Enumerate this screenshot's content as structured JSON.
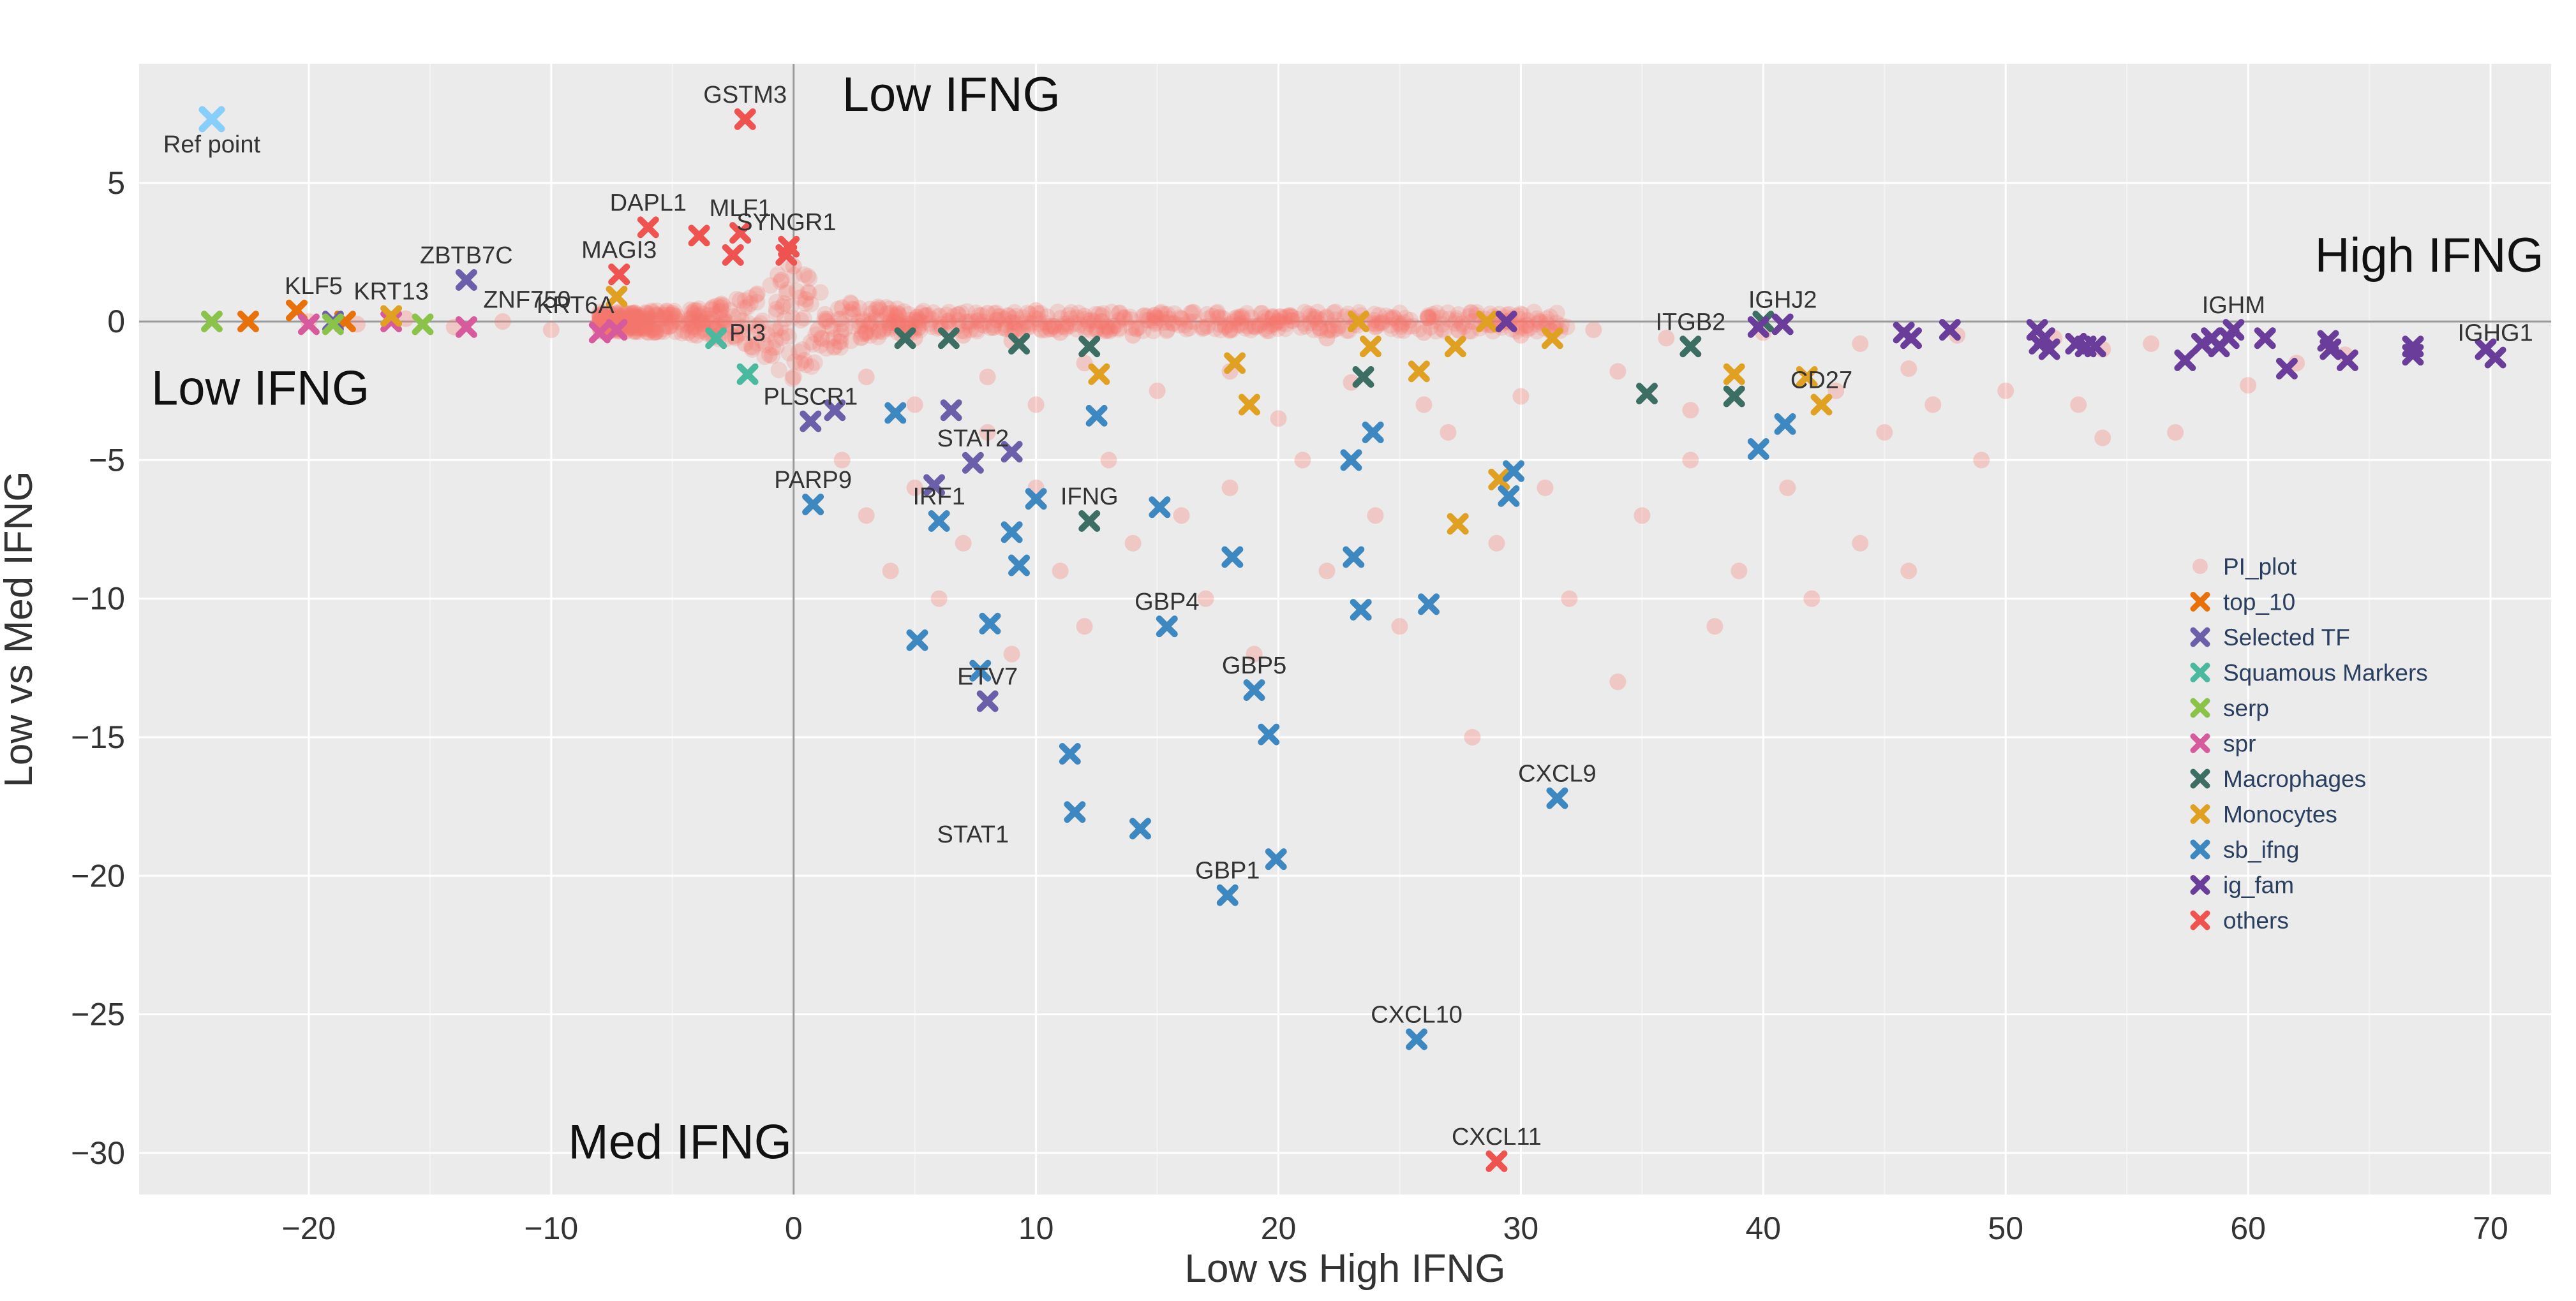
{
  "chart_data": {
    "type": "scatter",
    "title": "",
    "xlabel": "Low vs High IFNG",
    "ylabel": "Low vs Med IFNG",
    "xlim": [
      -27,
      72.5
    ],
    "ylim": [
      -31.5,
      9.3
    ],
    "x_ticks": [
      -20,
      -10,
      0,
      10,
      20,
      30,
      40,
      50,
      60,
      70
    ],
    "y_ticks": [
      5,
      0,
      -5,
      -10,
      -15,
      -20,
      -25,
      -30
    ],
    "grid": true,
    "background": "#ebebeb",
    "legend_position": "right",
    "quadrant_labels": [
      {
        "text": "Low IFNG",
        "x": 2,
        "y": 7.6
      },
      {
        "text": "High IFNG",
        "x": 72.2,
        "y": 1.8
      },
      {
        "text": "Low IFNG",
        "x": -26.5,
        "y": -3
      },
      {
        "text": "Med IFNG",
        "x": -9.3,
        "y": -30.2
      }
    ],
    "ref_point": {
      "label": "Ref point",
      "x": -24,
      "y": 7.3,
      "color": "#87cefa"
    },
    "series": [
      {
        "name": "PI_plot",
        "color": "#f8766d",
        "marker": "circle",
        "points": [
          [
            -20,
            0
          ],
          [
            -18,
            -0.1
          ],
          [
            -16,
            0.1
          ],
          [
            -14,
            -0.2
          ],
          [
            -12,
            0
          ],
          [
            -10,
            -0.3
          ],
          [
            -8,
            0.2
          ],
          [
            -6,
            -0.4
          ],
          [
            -5,
            0.3
          ],
          [
            -4,
            -0.5
          ],
          [
            -3,
            0.5
          ],
          [
            -2,
            -0.8
          ],
          [
            -1.5,
            1
          ],
          [
            -1,
            -1.2
          ],
          [
            -0.5,
            1.5
          ],
          [
            0,
            -2
          ],
          [
            0,
            2
          ],
          [
            0.3,
            -1.5
          ],
          [
            0.5,
            0.8
          ],
          [
            1,
            -0.3
          ],
          [
            2,
            0.5
          ],
          [
            3,
            -0.4
          ],
          [
            4,
            0.3
          ],
          [
            5,
            -0.6
          ],
          [
            6,
            0.2
          ],
          [
            7,
            -0.5
          ],
          [
            8,
            0.3
          ],
          [
            9,
            -0.7
          ],
          [
            10,
            0.4
          ],
          [
            11,
            -0.4
          ],
          [
            12,
            0.2
          ],
          [
            14,
            -0.5
          ],
          [
            16,
            0.1
          ],
          [
            18,
            -0.3
          ],
          [
            20,
            0
          ],
          [
            22,
            -0.6
          ],
          [
            24,
            -0.2
          ],
          [
            26,
            -0.4
          ],
          [
            28,
            0
          ],
          [
            30,
            -0.5
          ],
          [
            33,
            -0.3
          ],
          [
            36,
            -0.6
          ],
          [
            40,
            -0.4
          ],
          [
            44,
            -0.8
          ],
          [
            48,
            -0.5
          ],
          [
            52,
            -0.6
          ],
          [
            54,
            -1
          ],
          [
            56,
            -0.8
          ],
          [
            2,
            -5
          ],
          [
            3,
            -7
          ],
          [
            4,
            -9
          ],
          [
            5,
            -6
          ],
          [
            6,
            -10
          ],
          [
            7,
            -8
          ],
          [
            8,
            -4
          ],
          [
            9,
            -12
          ],
          [
            10,
            -6
          ],
          [
            11,
            -9
          ],
          [
            12,
            -11
          ],
          [
            13,
            -5
          ],
          [
            14,
            -8
          ],
          [
            16,
            -7
          ],
          [
            17,
            -10
          ],
          [
            18,
            -6
          ],
          [
            19,
            -12
          ],
          [
            21,
            -5
          ],
          [
            22,
            -9
          ],
          [
            24,
            -7
          ],
          [
            25,
            -11
          ],
          [
            27,
            -4
          ],
          [
            28,
            -15
          ],
          [
            29,
            -8
          ],
          [
            31,
            -6
          ],
          [
            32,
            -10
          ],
          [
            34,
            -13
          ],
          [
            35,
            -7
          ],
          [
            37,
            -5
          ],
          [
            38,
            -11
          ],
          [
            39,
            -9
          ],
          [
            41,
            -6
          ],
          [
            42,
            -10
          ],
          [
            44,
            -8
          ],
          [
            45,
            -4
          ],
          [
            46,
            -9
          ],
          [
            47,
            -3
          ],
          [
            49,
            -5
          ],
          [
            50,
            -2.5
          ],
          [
            53,
            -3
          ],
          [
            54,
            -4.2
          ],
          [
            57,
            -4
          ],
          [
            60,
            -2.3
          ],
          [
            62,
            -1.5
          ],
          [
            64,
            -1.2
          ],
          [
            3,
            -2
          ],
          [
            5,
            -3
          ],
          [
            8,
            -2
          ],
          [
            10,
            -3
          ],
          [
            12,
            -1.5
          ],
          [
            15,
            -2.5
          ],
          [
            18,
            -1.8
          ],
          [
            20,
            -3.5
          ],
          [
            23,
            -2.2
          ],
          [
            26,
            -3
          ],
          [
            30,
            -2.7
          ],
          [
            34,
            -1.8
          ],
          [
            37,
            -3.2
          ],
          [
            43,
            -2.5
          ],
          [
            46,
            -1.7
          ]
        ]
      },
      {
        "name": "top_10",
        "color": "#e8710a",
        "marker": "x",
        "points": [
          [
            -22.5,
            0
          ],
          [
            -20.5,
            0.4
          ],
          [
            -18.5,
            0
          ]
        ]
      },
      {
        "name": "Selected TF",
        "color": "#6a5fa8",
        "marker": "x",
        "points": [
          [
            -13.5,
            1.5
          ],
          [
            -19,
            0
          ],
          [
            0.7,
            -3.6
          ],
          [
            1.7,
            -3.2
          ],
          [
            6.5,
            -3.2
          ],
          [
            7.4,
            -5.1
          ],
          [
            9,
            -4.7
          ],
          [
            5.8,
            -5.9
          ],
          [
            8,
            -13.7
          ]
        ]
      },
      {
        "name": "Squamous Markers",
        "color": "#4ab99e",
        "marker": "x",
        "points": [
          [
            -3.2,
            -0.6
          ],
          [
            -1.9,
            -1.9
          ]
        ]
      },
      {
        "name": "serp",
        "color": "#8bc34a",
        "marker": "x",
        "points": [
          [
            -24,
            0
          ],
          [
            -19,
            -0.1
          ],
          [
            -15.3,
            -0.1
          ]
        ]
      },
      {
        "name": "spr",
        "color": "#d65a9c",
        "marker": "x",
        "points": [
          [
            -20,
            -0.1
          ],
          [
            -16.6,
            0
          ],
          [
            -13.5,
            -0.2
          ],
          [
            -8,
            -0.4
          ],
          [
            -7.3,
            -0.3
          ]
        ]
      },
      {
        "name": "Macrophages",
        "color": "#3c6e63",
        "marker": "x",
        "points": [
          [
            4.6,
            -0.6
          ],
          [
            6.4,
            -0.6
          ],
          [
            9.3,
            -0.8
          ],
          [
            12.2,
            -0.9
          ],
          [
            12.2,
            -7.2
          ],
          [
            23.5,
            -2
          ],
          [
            35.2,
            -2.6
          ],
          [
            37,
            -0.9
          ],
          [
            38.8,
            -2.7
          ],
          [
            40,
            0
          ]
        ]
      },
      {
        "name": "Monocytes",
        "color": "#e0a022",
        "marker": "x",
        "points": [
          [
            -16.6,
            0.2
          ],
          [
            -7.3,
            0.9
          ],
          [
            12.6,
            -1.9
          ],
          [
            18.2,
            -1.5
          ],
          [
            18.8,
            -3
          ],
          [
            23.3,
            0
          ],
          [
            23.8,
            -0.9
          ],
          [
            25.8,
            -1.8
          ],
          [
            27.3,
            -0.9
          ],
          [
            27.4,
            -7.3
          ],
          [
            28.6,
            0
          ],
          [
            29.1,
            -5.7
          ],
          [
            31.3,
            -0.6
          ],
          [
            38.8,
            -1.9
          ],
          [
            41.8,
            -2
          ],
          [
            42.4,
            -3
          ]
        ]
      },
      {
        "name": "sb_ifng",
        "color": "#3d88c0",
        "marker": "x",
        "points": [
          [
            0.8,
            -6.6
          ],
          [
            4.2,
            -3.3
          ],
          [
            5.1,
            -11.5
          ],
          [
            6,
            -7.2
          ],
          [
            7.7,
            -12.6
          ],
          [
            8.1,
            -10.9
          ],
          [
            9,
            -7.6
          ],
          [
            9.3,
            -8.8
          ],
          [
            10,
            -6.4
          ],
          [
            11.4,
            -15.6
          ],
          [
            11.6,
            -17.7
          ],
          [
            12.5,
            -3.4
          ],
          [
            14.3,
            -18.3
          ],
          [
            15.1,
            -6.7
          ],
          [
            15.4,
            -11
          ],
          [
            17.9,
            -20.7
          ],
          [
            18.1,
            -8.5
          ],
          [
            19,
            -13.3
          ],
          [
            19.6,
            -14.9
          ],
          [
            19.9,
            -19.4
          ],
          [
            23,
            -5
          ],
          [
            23.1,
            -8.5
          ],
          [
            23.4,
            -10.4
          ],
          [
            23.9,
            -4
          ],
          [
            25.7,
            -25.9
          ],
          [
            26.2,
            -10.2
          ],
          [
            29.5,
            -6.3
          ],
          [
            29.7,
            -5.4
          ],
          [
            31.5,
            -17.2
          ],
          [
            39.8,
            -4.6
          ],
          [
            40.9,
            -3.7
          ]
        ]
      },
      {
        "name": "ig_fam",
        "color": "#6a3d9a",
        "marker": "x",
        "points": [
          [
            29.4,
            0
          ],
          [
            39.8,
            -0.2
          ],
          [
            40.8,
            -0.1
          ],
          [
            47.7,
            -0.3
          ],
          [
            45.8,
            -0.4
          ],
          [
            46.1,
            -0.6
          ],
          [
            51.3,
            -0.3
          ],
          [
            51.4,
            -0.8
          ],
          [
            51.8,
            -1
          ],
          [
            51.6,
            -0.6
          ],
          [
            52.9,
            -0.8
          ],
          [
            53.3,
            -0.9
          ],
          [
            53.7,
            -0.9
          ],
          [
            57.4,
            -1.4
          ],
          [
            58.1,
            -0.8
          ],
          [
            58.5,
            -0.6
          ],
          [
            58.8,
            -0.9
          ],
          [
            59.2,
            -0.6
          ],
          [
            59.4,
            -0.3
          ],
          [
            60.7,
            -0.6
          ],
          [
            61.6,
            -1.7
          ],
          [
            63.3,
            -0.7
          ],
          [
            63.4,
            -1
          ],
          [
            64.1,
            -1.4
          ],
          [
            66.8,
            -0.9
          ],
          [
            66.8,
            -1.2
          ],
          [
            69.8,
            -1
          ],
          [
            70.2,
            -1.3
          ]
        ]
      },
      {
        "name": "others",
        "color": "#ef5350",
        "marker": "x",
        "points": [
          [
            -2,
            7.3
          ],
          [
            -6,
            3.4
          ],
          [
            -3.9,
            3.1
          ],
          [
            -2.2,
            3.2
          ],
          [
            -7.2,
            1.7
          ],
          [
            -0.2,
            2.7
          ],
          [
            -0.3,
            2.4
          ],
          [
            -2.5,
            2.4
          ],
          [
            29,
            -30.3
          ]
        ]
      }
    ],
    "labels": [
      {
        "text": "GSTM3",
        "x": -2,
        "y": 7.3
      },
      {
        "text": "DAPL1",
        "x": -6,
        "y": 3.4
      },
      {
        "text": "MLF1",
        "x": -2.2,
        "y": 3.2
      },
      {
        "text": "SYNGR1",
        "x": -0.3,
        "y": 2.7
      },
      {
        "text": "MAGI3",
        "x": -7.2,
        "y": 1.7
      },
      {
        "text": "ZBTB7C",
        "x": -13.5,
        "y": 1.5
      },
      {
        "text": "KLF5",
        "x": -19.8,
        "y": 0.4
      },
      {
        "text": "KRT13",
        "x": -16.6,
        "y": 0.2
      },
      {
        "text": "ZNF750",
        "x": -11,
        "y": -0.1
      },
      {
        "text": "KRT6A",
        "x": -9,
        "y": -0.3
      },
      {
        "text": "PI3",
        "x": -1.9,
        "y": -1.3
      },
      {
        "text": "PLSCR1",
        "x": 0.7,
        "y": -3.6
      },
      {
        "text": "STAT2",
        "x": 7.4,
        "y": -5.1
      },
      {
        "text": "PARP9",
        "x": 0.8,
        "y": -6.6
      },
      {
        "text": "IRF1",
        "x": 6,
        "y": -7.2
      },
      {
        "text": "IFNG",
        "x": 12.2,
        "y": -7.2
      },
      {
        "text": "GBP4",
        "x": 15.4,
        "y": -11
      },
      {
        "text": "ETV7",
        "x": 8,
        "y": -13.7
      },
      {
        "text": "GBP5",
        "x": 19,
        "y": -13.3
      },
      {
        "text": "CXCL9",
        "x": 31.5,
        "y": -17.2
      },
      {
        "text": "STAT1",
        "x": 7.4,
        "y": -19.4
      },
      {
        "text": "GBP1",
        "x": 17.9,
        "y": -20.7
      },
      {
        "text": "CXCL10",
        "x": 25.7,
        "y": -25.9
      },
      {
        "text": "CXCL11",
        "x": 29,
        "y": -30.3
      },
      {
        "text": "ITGB2",
        "x": 37,
        "y": -0.9
      },
      {
        "text": "IGHJ2",
        "x": 40.8,
        "y": -0.1
      },
      {
        "text": "CD27",
        "x": 42.4,
        "y": -3
      },
      {
        "text": "IGHM",
        "x": 59.4,
        "y": -0.3
      },
      {
        "text": "IGHG1",
        "x": 70.2,
        "y": -1.3
      }
    ]
  }
}
